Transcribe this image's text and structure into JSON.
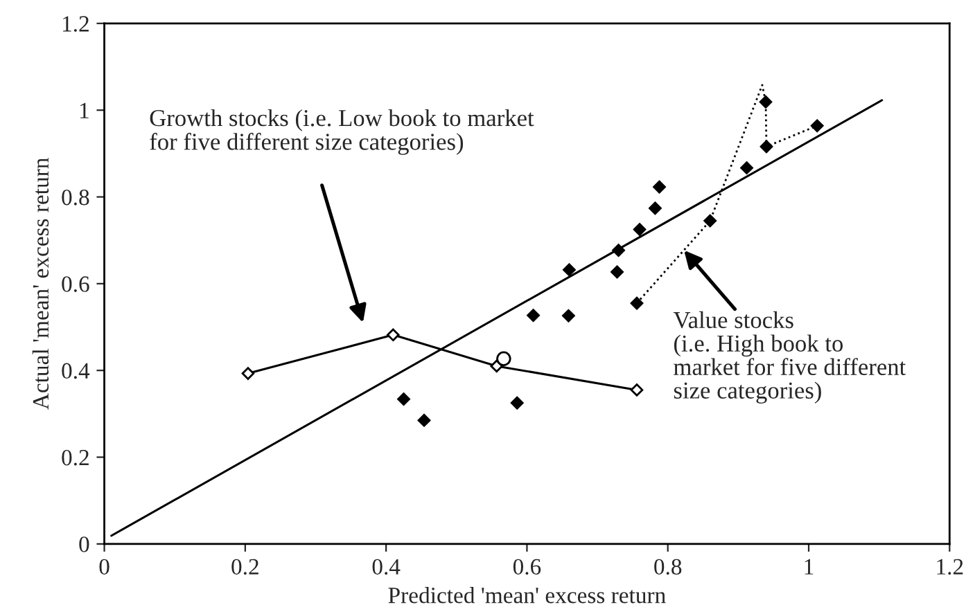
{
  "chart_data": {
    "type": "scatter",
    "xlabel": "Predicted 'mean' excess return",
    "ylabel": "Actual 'mean' excess return",
    "xlim": [
      0,
      1.2
    ],
    "xticks": [
      0,
      0.2,
      0.4,
      0.6,
      0.8,
      1,
      1.2
    ],
    "ylim": [
      0,
      1.2
    ],
    "yticks": [
      0,
      0.2,
      0.4,
      0.6,
      0.8,
      1,
      1.2
    ],
    "grid": false,
    "legend": false,
    "series": [
      {
        "type": "line",
        "color": "#000000",
        "marker": "none",
        "line_style": "solid",
        "x": [
          0.01,
          1.104
        ],
        "values": [
          0.019,
          1.023
        ]
      },
      {
        "type": "line",
        "color": "#000000",
        "marker": "diamond",
        "line_style": "solid",
        "x": [
          0.204,
          0.41,
          0.557,
          0.756
        ],
        "values": [
          0.393,
          0.482,
          0.41,
          0.355
        ]
      },
      {
        "type": "scatter",
        "color": "#000000",
        "marker": "circle",
        "x": [
          0.567
        ],
        "values": [
          0.427
        ]
      },
      {
        "type": "line",
        "color": "#000000",
        "marker": "none",
        "line_style": "dotted",
        "x": [
          0.756,
          0.86,
          0.934,
          0.939,
          0.94,
          1.012
        ],
        "values": [
          0.555,
          0.745,
          1.058,
          1.019,
          0.916,
          0.964
        ]
      },
      {
        "color": "#000000",
        "marker": "diamond",
        "x": [
          0.425,
          0.454,
          0.586,
          0.609,
          0.659,
          0.66,
          0.728,
          0.73,
          0.76,
          0.782,
          0.788,
          0.912,
          0.756,
          0.86,
          0.939,
          0.94,
          1.012
        ],
        "values": [
          0.334,
          0.285,
          0.325,
          0.527,
          0.526,
          0.632,
          0.627,
          0.677,
          0.725,
          0.774,
          0.823,
          0.867,
          0.555,
          0.745,
          1.019,
          0.916,
          0.964
        ]
      }
    ],
    "annotations": [
      "Growth stocks (i.e. Low book to market\nfor five different size categories)",
      {
        "text": "Value stocks\n(i.e. High book to\nmarket for five different\nsize categories)",
        "x": 0.823,
        "y": 0.677
      }
    ]
  }
}
